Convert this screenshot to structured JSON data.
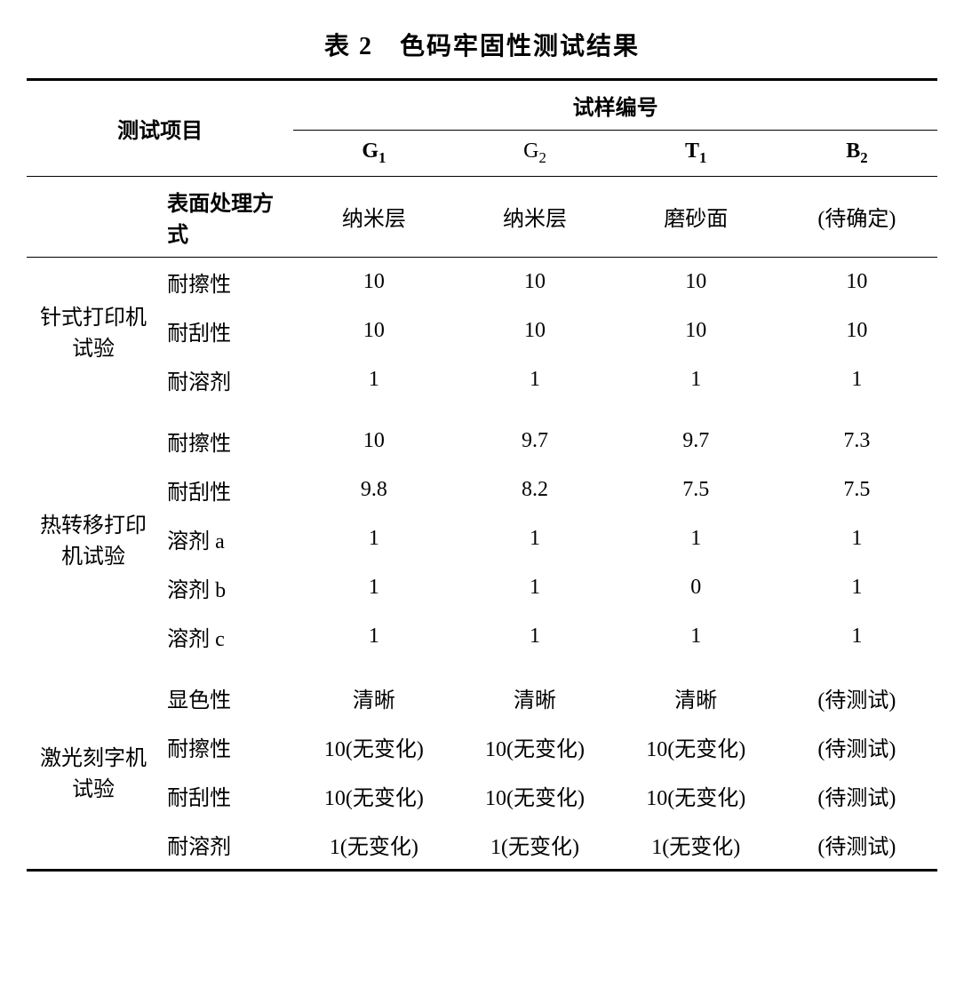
{
  "title": "表 2　色码牢固性测试结果",
  "header": {
    "test_item": "测试项目",
    "sample_no": "试样编号",
    "samples": [
      {
        "letter": "G",
        "sub": "1",
        "bold": true
      },
      {
        "letter": "G",
        "sub": "2",
        "bold": false
      },
      {
        "letter": "T",
        "sub": "1",
        "bold": true
      },
      {
        "letter": "B",
        "sub": "2",
        "bold": true
      }
    ]
  },
  "surface": {
    "label": "表面处理方式",
    "values": [
      "纳米层",
      "纳米层",
      "磨砂面",
      "(待确定)"
    ]
  },
  "groups": [
    {
      "name": "针式打印机试验",
      "rows": [
        {
          "attr": "耐擦性",
          "v": [
            "10",
            "10",
            "10",
            "10"
          ]
        },
        {
          "attr": "耐刮性",
          "v": [
            "10",
            "10",
            "10",
            "10"
          ]
        },
        {
          "attr": "耐溶剂",
          "v": [
            "1",
            "1",
            "1",
            "1"
          ]
        }
      ]
    },
    {
      "name": "热转移打印机试验",
      "rows": [
        {
          "attr": "耐擦性",
          "v": [
            "10",
            "9.7",
            "9.7",
            "7.3"
          ]
        },
        {
          "attr": "耐刮性",
          "v": [
            "9.8",
            "8.2",
            "7.5",
            "7.5"
          ]
        },
        {
          "attr": "溶剂 a",
          "v": [
            "1",
            "1",
            "1",
            "1"
          ]
        },
        {
          "attr": "溶剂 b",
          "v": [
            "1",
            "1",
            "0",
            "1"
          ]
        },
        {
          "attr": "溶剂 c",
          "v": [
            "1",
            "1",
            "1",
            "1"
          ]
        }
      ]
    },
    {
      "name": "激光刻字机试验",
      "rows": [
        {
          "attr": "显色性",
          "v": [
            "清晰",
            "清晰",
            "清晰",
            "(待测试)"
          ]
        },
        {
          "attr": "耐擦性",
          "v": [
            "10(无变化)",
            "10(无变化)",
            "10(无变化)",
            "(待测试)"
          ]
        },
        {
          "attr": "耐刮性",
          "v": [
            "10(无变化)",
            "10(无变化)",
            "10(无变化)",
            "(待测试)"
          ]
        },
        {
          "attr": "耐溶剂",
          "v": [
            "1(无变化)",
            "1(无变化)",
            "1(无变化)",
            "(待测试)"
          ]
        }
      ]
    }
  ]
}
